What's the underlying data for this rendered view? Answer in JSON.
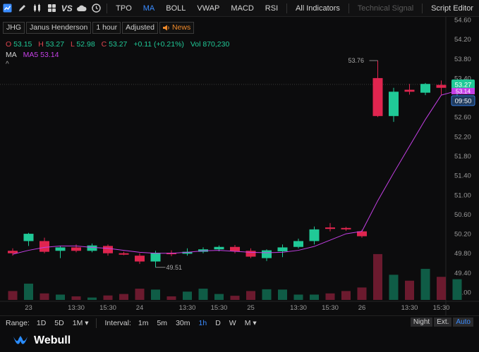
{
  "toolbar": {
    "indicators": [
      {
        "label": "TPO",
        "active": false
      },
      {
        "label": "MA",
        "active": true
      },
      {
        "label": "BOLL",
        "active": false
      },
      {
        "label": "VWAP",
        "active": false
      },
      {
        "label": "MACD",
        "active": false
      },
      {
        "label": "RSI",
        "active": false
      },
      {
        "label": "All Indicators",
        "active": false
      }
    ],
    "technical_signal": "Technical Signal",
    "script_editor": "Script Editor",
    "vs_label": "VS"
  },
  "symbol_bar": {
    "ticker": "JHG",
    "name": "Janus Henderson",
    "interval": "1 hour",
    "adjusted": "Adjusted",
    "news": "News"
  },
  "ohlc": {
    "o_label": "O",
    "o": "53.15",
    "h_label": "H",
    "h": "53.27",
    "l_label": "L",
    "l": "52.98",
    "c_label": "C",
    "c": "53.27",
    "change": "+0.11 (+0.21%)",
    "vol_label": "Vol",
    "vol": "870,230"
  },
  "ma": {
    "name": "MA",
    "ma5": "MA5 53.14"
  },
  "colors": {
    "up": "#20c997",
    "down": "#e0254f",
    "ma5": "#c540e6",
    "accent": "#3a8cff",
    "news": "#f08a2a"
  },
  "chart_data": {
    "type": "candlestick",
    "ylim": [
      48.85,
      54.75
    ],
    "y_ticks": [
      "54.60",
      "54.20",
      "53.80",
      "53.40",
      "53.00",
      "52.60",
      "52.20",
      "51.80",
      "51.40",
      "51.00",
      "50.60",
      "50.20",
      "49.80",
      "49.40",
      "49.00"
    ],
    "x_ticks": [
      {
        "label": "23",
        "index": 1
      },
      {
        "label": "13:30",
        "index": 4
      },
      {
        "label": "15:30",
        "index": 6
      },
      {
        "label": "24",
        "index": 8
      },
      {
        "label": "13:30",
        "index": 11
      },
      {
        "label": "15:30",
        "index": 13
      },
      {
        "label": "25",
        "index": 15
      },
      {
        "label": "13:30",
        "index": 18
      },
      {
        "label": "15:30",
        "index": 20
      },
      {
        "label": "26",
        "index": 22
      },
      {
        "label": "13:30",
        "index": 25
      },
      {
        "label": "15:30",
        "index": 27
      }
    ],
    "candles": [
      {
        "o": 49.85,
        "h": 49.9,
        "l": 49.75,
        "c": 49.8,
        "v": 0.3
      },
      {
        "o": 50.05,
        "h": 50.22,
        "l": 49.95,
        "c": 50.2,
        "v": 0.55
      },
      {
        "o": 50.05,
        "h": 50.12,
        "l": 49.8,
        "c": 49.83,
        "v": 0.22
      },
      {
        "o": 49.85,
        "h": 49.95,
        "l": 49.7,
        "c": 49.92,
        "v": 0.18
      },
      {
        "o": 49.92,
        "h": 49.98,
        "l": 49.82,
        "c": 49.85,
        "v": 0.12
      },
      {
        "o": 49.85,
        "h": 50.0,
        "l": 49.82,
        "c": 49.96,
        "v": 0.08
      },
      {
        "o": 49.95,
        "h": 49.98,
        "l": 49.75,
        "c": 49.8,
        "v": 0.15
      },
      {
        "o": 49.8,
        "h": 49.83,
        "l": 49.76,
        "c": 49.78,
        "v": 0.2
      },
      {
        "o": 49.75,
        "h": 49.8,
        "l": 49.58,
        "c": 49.63,
        "v": 0.38
      },
      {
        "o": 49.63,
        "h": 49.85,
        "l": 49.51,
        "c": 49.81,
        "v": 0.35
      },
      {
        "o": 49.81,
        "h": 49.86,
        "l": 49.74,
        "c": 49.78,
        "v": 0.12
      },
      {
        "o": 49.79,
        "h": 49.9,
        "l": 49.75,
        "c": 49.83,
        "v": 0.28
      },
      {
        "o": 49.83,
        "h": 49.92,
        "l": 49.8,
        "c": 49.88,
        "v": 0.38
      },
      {
        "o": 49.88,
        "h": 49.96,
        "l": 49.84,
        "c": 49.93,
        "v": 0.2
      },
      {
        "o": 49.93,
        "h": 49.97,
        "l": 49.8,
        "c": 49.84,
        "v": 0.14
      },
      {
        "o": 49.85,
        "h": 49.9,
        "l": 49.7,
        "c": 49.73,
        "v": 0.3
      },
      {
        "o": 49.7,
        "h": 49.88,
        "l": 49.64,
        "c": 49.86,
        "v": 0.36
      },
      {
        "o": 49.84,
        "h": 49.98,
        "l": 49.72,
        "c": 49.92,
        "v": 0.35
      },
      {
        "o": 49.93,
        "h": 50.1,
        "l": 49.9,
        "c": 50.05,
        "v": 0.18
      },
      {
        "o": 50.05,
        "h": 50.35,
        "l": 49.98,
        "c": 50.29,
        "v": 0.18
      },
      {
        "o": 50.33,
        "h": 50.42,
        "l": 50.25,
        "c": 50.3,
        "v": 0.22
      },
      {
        "o": 50.32,
        "h": 50.34,
        "l": 50.26,
        "c": 50.3,
        "v": 0.3
      },
      {
        "o": 50.25,
        "h": 50.28,
        "l": 50.12,
        "c": 50.15,
        "v": 0.42
      },
      {
        "o": 53.4,
        "h": 53.76,
        "l": 52.6,
        "c": 52.62,
        "v": 1.55
      },
      {
        "o": 52.62,
        "h": 53.2,
        "l": 52.5,
        "c": 53.12,
        "v": 0.85
      },
      {
        "o": 53.16,
        "h": 53.28,
        "l": 53.06,
        "c": 53.12,
        "v": 0.65
      },
      {
        "o": 53.1,
        "h": 53.3,
        "l": 53.05,
        "c": 53.28,
        "v": 1.05
      },
      {
        "o": 53.26,
        "h": 53.35,
        "l": 53.06,
        "c": 53.2,
        "v": 0.78
      },
      {
        "o": 53.15,
        "h": 53.27,
        "l": 52.98,
        "c": 53.27,
        "v": 0.7
      }
    ],
    "ma5": [
      49.78,
      49.86,
      49.92,
      49.95,
      49.95,
      49.92,
      49.9,
      49.86,
      49.82,
      49.8,
      49.8,
      49.82,
      49.85,
      49.86,
      49.84,
      49.82,
      49.81,
      49.82,
      49.86,
      49.94,
      50.07,
      50.2,
      50.25,
      50.88,
      51.45,
      52.0,
      52.55,
      53.05,
      53.14
    ],
    "annotations": {
      "high_label": "53.76",
      "low_label": "49.51"
    },
    "price_tag": "53.27",
    "ma_tag": "53.14",
    "time_tag": "09:50"
  },
  "bottom_bar": {
    "range_label": "Range:",
    "ranges": [
      "1D",
      "5D",
      "1M ▾"
    ],
    "interval_label": "Interval:",
    "intervals": [
      {
        "label": "1m",
        "active": false
      },
      {
        "label": "5m",
        "active": false
      },
      {
        "label": "30m",
        "active": false
      },
      {
        "label": "1h",
        "active": true
      },
      {
        "label": "D",
        "active": false
      },
      {
        "label": "W",
        "active": false
      },
      {
        "label": "M ▾",
        "active": false
      }
    ],
    "sessions": [
      {
        "label": "Night",
        "active": false
      },
      {
        "label": "Ext.",
        "active": false
      },
      {
        "label": "Auto",
        "active": true
      }
    ]
  },
  "brand": {
    "name": "Webull"
  }
}
